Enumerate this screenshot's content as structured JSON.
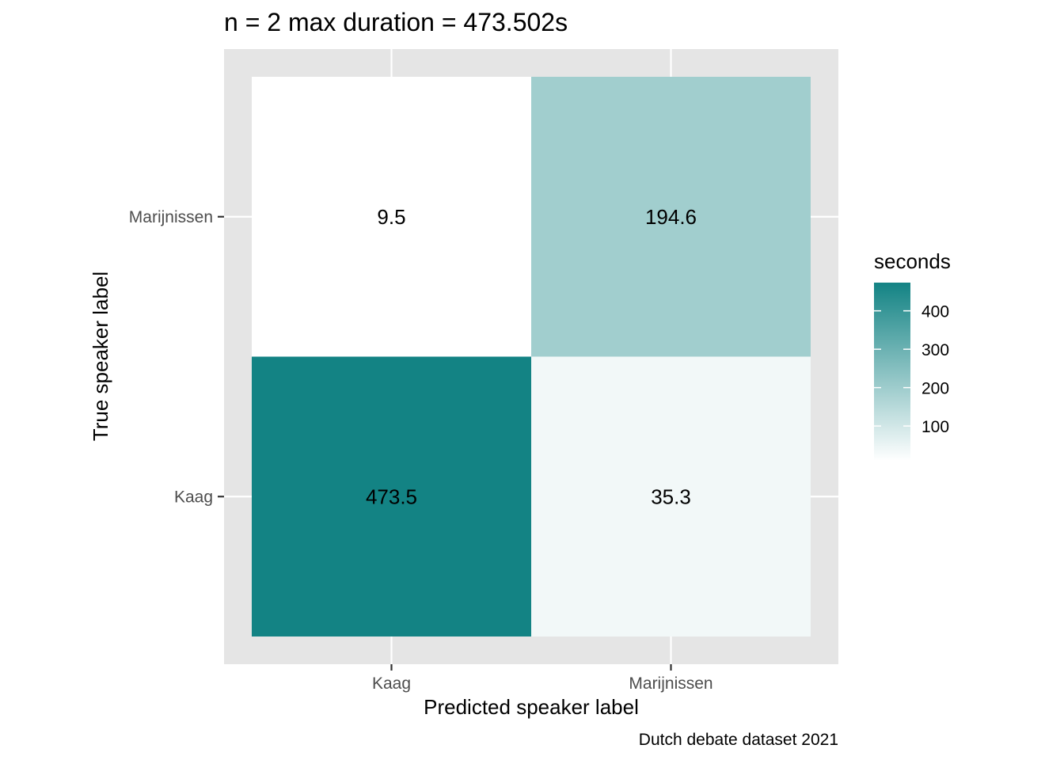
{
  "chart_data": {
    "type": "heatmap",
    "title": "n = 2 max duration = 473.502s",
    "xlabel": "Predicted speaker label",
    "ylabel": "True speaker label",
    "caption": "Dutch debate dataset 2021",
    "x_categories": [
      "Kaag",
      "Marijnissen"
    ],
    "y_categories": [
      "Kaag",
      "Marijnissen"
    ],
    "cells": [
      {
        "x": "Kaag",
        "y": "Marijnissen",
        "value": 9.5,
        "label": "9.5"
      },
      {
        "x": "Marijnissen",
        "y": "Marijnissen",
        "value": 194.6,
        "label": "194.6"
      },
      {
        "x": "Kaag",
        "y": "Kaag",
        "value": 473.5,
        "label": "473.5"
      },
      {
        "x": "Marijnissen",
        "y": "Kaag",
        "value": 35.3,
        "label": "35.3"
      }
    ],
    "legend": {
      "title": "seconds",
      "position": "right",
      "ticks": [
        100,
        200,
        300,
        400
      ],
      "tick_labels": [
        "100",
        "200",
        "300",
        "400"
      ],
      "range": [
        9.5,
        473.5
      ],
      "low_color": "#ffffff",
      "high_color": "#138384"
    },
    "panel_background": "#e5e5e5",
    "grid": true
  }
}
